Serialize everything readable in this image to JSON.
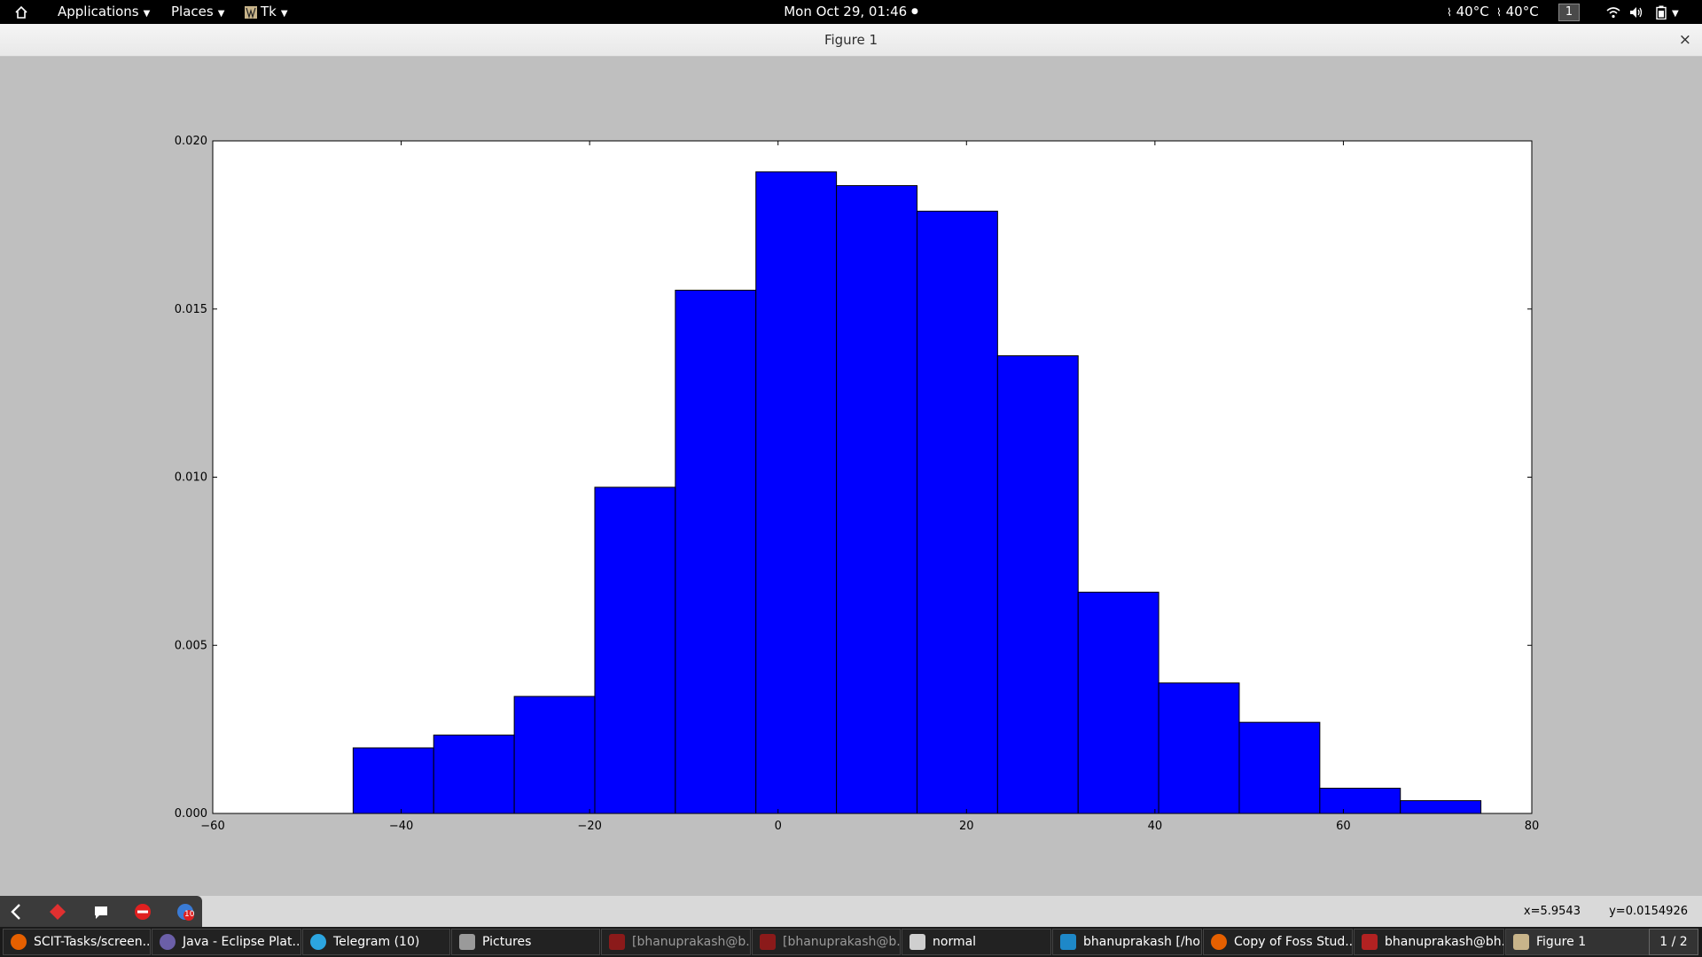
{
  "top_panel": {
    "applications_label": "Applications",
    "places_label": "Places",
    "app_label": "Tk",
    "clock": "Mon Oct 29, 01:46",
    "temp1": "40°C",
    "temp2": "40°C",
    "workspace": "1"
  },
  "window": {
    "title": "Figure 1",
    "close_glyph": "×"
  },
  "status": {
    "x_coord": "x=5.9543",
    "y_coord": "y=0.0154926"
  },
  "toolbar": {
    "icons": [
      "back-icon",
      "red-diamond-icon",
      "chat-icon",
      "no-entry-icon",
      "badge-icon"
    ],
    "badge_count": "10"
  },
  "taskbar": {
    "items": [
      {
        "label": "SCIT-Tasks/screen...",
        "icon": "firefox-icon",
        "color": "#e66000"
      },
      {
        "label": "Java - Eclipse Plat...",
        "icon": "eclipse-icon",
        "color": "#6b5fa8"
      },
      {
        "label": "Telegram (10)",
        "icon": "telegram-icon",
        "color": "#2ca5e0"
      },
      {
        "label": "Pictures",
        "icon": "folder-icon",
        "color": "#9a9a9a"
      },
      {
        "label": "[bhanuprakash@b...",
        "icon": "terminal-icon",
        "color": "#8b1a1a"
      },
      {
        "label": "[bhanuprakash@b...",
        "icon": "terminal-icon",
        "color": "#8b1a1a"
      },
      {
        "label": "normal",
        "icon": "document-icon",
        "color": "#cfcfcf"
      },
      {
        "label": "bhanuprakash [/ho...",
        "icon": "webstorm-icon",
        "color": "#1e88c8"
      },
      {
        "label": "Copy of Foss Stud...",
        "icon": "firefox-icon",
        "color": "#e66000"
      },
      {
        "label": "bhanuprakash@bh...",
        "icon": "terminal-icon",
        "color": "#b22222"
      },
      {
        "label": "Figure 1",
        "icon": "tk-icon",
        "color": "#c8b48a"
      }
    ],
    "pager": "1 / 2"
  },
  "chart_data": {
    "type": "bar",
    "bar_color": "#0000ff",
    "xlim": [
      -60,
      80
    ],
    "ylim": [
      0,
      0.02
    ],
    "x_ticks": [
      -60,
      -40,
      -20,
      0,
      20,
      40,
      60,
      80
    ],
    "x_tick_labels": [
      "−60",
      "−40",
      "−20",
      "0",
      "20",
      "40",
      "60",
      "80"
    ],
    "y_ticks": [
      0,
      0.005,
      0.01,
      0.015,
      0.02
    ],
    "y_tick_labels": [
      "0.000",
      "0.005",
      "0.010",
      "0.015",
      "0.020"
    ],
    "bin_edges": [
      -45.1,
      -36.55,
      -28.0,
      -19.45,
      -10.9,
      -2.35,
      6.2,
      14.75,
      23.3,
      31.85,
      40.4,
      48.95,
      57.5,
      66.05,
      74.6
    ],
    "values": [
      0.00195,
      0.00233,
      0.00348,
      0.0097,
      0.01556,
      0.01908,
      0.01867,
      0.01791,
      0.01361,
      0.00658,
      0.00388,
      0.00271,
      0.00075,
      0.00038
    ],
    "title": "",
    "xlabel": "",
    "ylabel": "",
    "grid": false,
    "legend": "none"
  }
}
